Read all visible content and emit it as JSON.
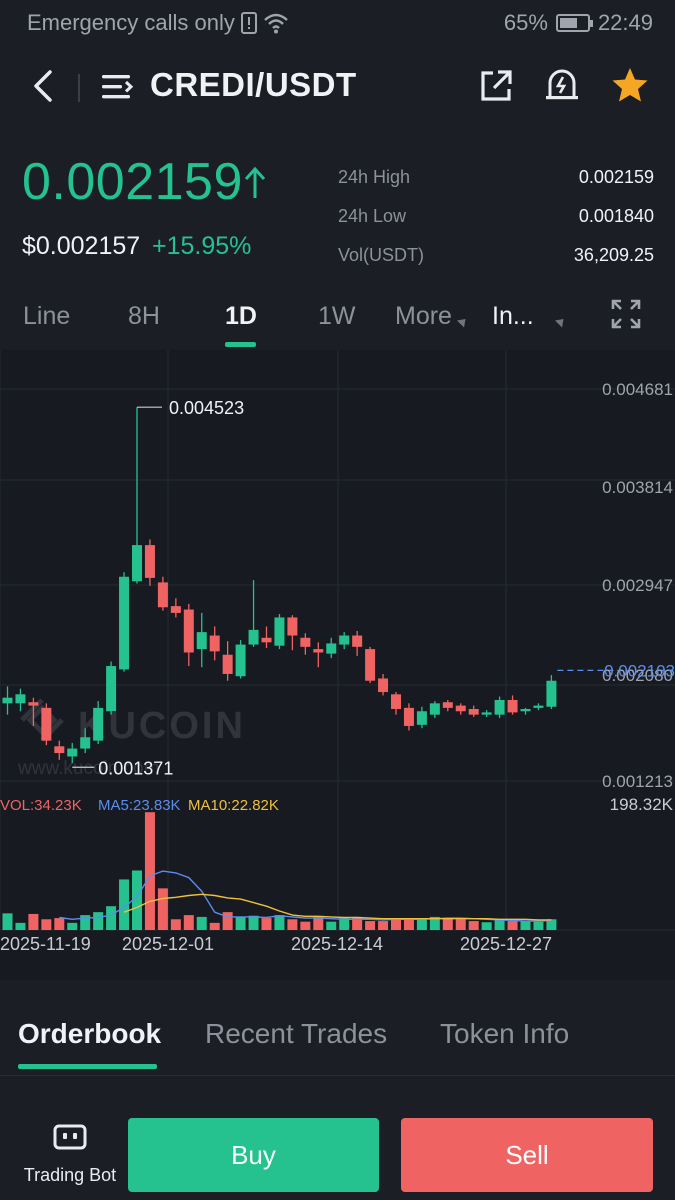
{
  "status_bar": {
    "carrier_text": "Emergency calls only",
    "battery_percent": "65%",
    "battery_level": 0.65,
    "time": "22:49"
  },
  "header": {
    "pair": "CREDI/USDT"
  },
  "price": {
    "last": "0.002159",
    "usd": "$0.002157",
    "change": "+15.95%"
  },
  "stats": [
    {
      "label": "24h High",
      "value": "0.002159"
    },
    {
      "label": "24h Low",
      "value": "0.001840"
    },
    {
      "label": "Vol(USDT)",
      "value": "36,209.25"
    }
  ],
  "timeframes": {
    "line": "Line",
    "h8": "8H",
    "d1": "1D",
    "w1": "1W",
    "more": "More",
    "indicators": "In..."
  },
  "colors": {
    "up": "#25c28f",
    "down": "#f06363",
    "ma5": "#5b8def",
    "ma10": "#f0c03a",
    "bg": "#1b1e25",
    "chart_bg": "#171a20"
  },
  "chart_data": {
    "type": "candlestick",
    "watermark": "KUCOIN",
    "watermark_url": "www.kucoin.com",
    "y_ticks": [
      "0.004681",
      "0.003814",
      "0.002947",
      "0.002080",
      "0.001213"
    ],
    "y_range": [
      0.001213,
      0.004681
    ],
    "current_price_label": "0.002103",
    "current_price": 0.002103,
    "max_label": "0.004523",
    "min_label": "0.001371",
    "x_labels": [
      "2025-11-19",
      "2025-12-01",
      "2025-12-14",
      "2025-12-27"
    ],
    "candles": [
      {
        "o": 0.0019,
        "c": 0.00195,
        "h": 0.00205,
        "l": 0.0018
      },
      {
        "o": 0.0019,
        "c": 0.00198,
        "h": 0.00203,
        "l": 0.00183
      },
      {
        "o": 0.00191,
        "c": 0.00188,
        "h": 0.00195,
        "l": 0.0017
      },
      {
        "o": 0.00186,
        "c": 0.00157,
        "h": 0.0019,
        "l": 0.00153
      },
      {
        "o": 0.00152,
        "c": 0.00146,
        "h": 0.00157,
        "l": 0.0014
      },
      {
        "o": 0.00143,
        "c": 0.0015,
        "h": 0.00155,
        "l": 0.00137
      },
      {
        "o": 0.0015,
        "c": 0.0016,
        "h": 0.00168,
        "l": 0.00146
      },
      {
        "o": 0.00157,
        "c": 0.00186,
        "h": 0.00192,
        "l": 0.00154
      },
      {
        "o": 0.00183,
        "c": 0.00223,
        "h": 0.00227,
        "l": 0.0018
      },
      {
        "o": 0.0022,
        "c": 0.00302,
        "h": 0.00306,
        "l": 0.00218
      },
      {
        "o": 0.00298,
        "c": 0.0033,
        "h": 0.00452,
        "l": 0.00296
      },
      {
        "o": 0.0033,
        "c": 0.00301,
        "h": 0.00335,
        "l": 0.00294
      },
      {
        "o": 0.00297,
        "c": 0.00275,
        "h": 0.00302,
        "l": 0.00272
      },
      {
        "o": 0.00276,
        "c": 0.0027,
        "h": 0.00283,
        "l": 0.00266
      },
      {
        "o": 0.00273,
        "c": 0.00235,
        "h": 0.00278,
        "l": 0.00223
      },
      {
        "o": 0.00238,
        "c": 0.00253,
        "h": 0.0027,
        "l": 0.00222
      },
      {
        "o": 0.0025,
        "c": 0.00236,
        "h": 0.00258,
        "l": 0.00228
      },
      {
        "o": 0.00233,
        "c": 0.00216,
        "h": 0.00245,
        "l": 0.0021
      },
      {
        "o": 0.00214,
        "c": 0.00242,
        "h": 0.00246,
        "l": 0.00212
      },
      {
        "o": 0.00242,
        "c": 0.00255,
        "h": 0.00299,
        "l": 0.0024
      },
      {
        "o": 0.00248,
        "c": 0.00244,
        "h": 0.00258,
        "l": 0.00239
      },
      {
        "o": 0.00241,
        "c": 0.00266,
        "h": 0.00269,
        "l": 0.00238
      },
      {
        "o": 0.00266,
        "c": 0.0025,
        "h": 0.00268,
        "l": 0.00237
      },
      {
        "o": 0.00248,
        "c": 0.0024,
        "h": 0.00252,
        "l": 0.00233
      },
      {
        "o": 0.00238,
        "c": 0.00235,
        "h": 0.00244,
        "l": 0.00222
      },
      {
        "o": 0.00234,
        "c": 0.00243,
        "h": 0.00248,
        "l": 0.0023
      },
      {
        "o": 0.00242,
        "c": 0.0025,
        "h": 0.00253,
        "l": 0.00238
      },
      {
        "o": 0.0025,
        "c": 0.0024,
        "h": 0.00254,
        "l": 0.00232
      },
      {
        "o": 0.00238,
        "c": 0.0021,
        "h": 0.0024,
        "l": 0.00208
      },
      {
        "o": 0.00212,
        "c": 0.002,
        "h": 0.00216,
        "l": 0.00197
      },
      {
        "o": 0.00198,
        "c": 0.00185,
        "h": 0.002,
        "l": 0.0018
      },
      {
        "o": 0.00186,
        "c": 0.0017,
        "h": 0.0019,
        "l": 0.00166
      },
      {
        "o": 0.00171,
        "c": 0.00183,
        "h": 0.00187,
        "l": 0.00168
      },
      {
        "o": 0.0018,
        "c": 0.0019,
        "h": 0.00192,
        "l": 0.00177
      },
      {
        "o": 0.00191,
        "c": 0.00186,
        "h": 0.00193,
        "l": 0.00183
      },
      {
        "o": 0.00188,
        "c": 0.00183,
        "h": 0.0019,
        "l": 0.0018
      },
      {
        "o": 0.00185,
        "c": 0.0018,
        "h": 0.00188,
        "l": 0.00178
      },
      {
        "o": 0.0018,
        "c": 0.00182,
        "h": 0.00184,
        "l": 0.00178
      },
      {
        "o": 0.0018,
        "c": 0.00193,
        "h": 0.00196,
        "l": 0.00177
      },
      {
        "o": 0.00193,
        "c": 0.00182,
        "h": 0.00197,
        "l": 0.0018
      },
      {
        "o": 0.00183,
        "c": 0.00185,
        "h": 0.00186,
        "l": 0.0018
      },
      {
        "o": 0.00186,
        "c": 0.00188,
        "h": 0.0019,
        "l": 0.00184
      },
      {
        "o": 0.00187,
        "c": 0.0021,
        "h": 0.00215,
        "l": 0.00185
      }
    ],
    "volume": {
      "vol_label": "VOL:34.23K",
      "ma5_label": "MA5:23.83K",
      "ma10_label": "MA10:22.82K",
      "max_label": "198.32K",
      "max": 198.32,
      "values": [
        28,
        12,
        27,
        18,
        20,
        12,
        25,
        30,
        40,
        85,
        100,
        198,
        70,
        18,
        25,
        22,
        12,
        30,
        22,
        24,
        20,
        25,
        18,
        14,
        22,
        14,
        20,
        22,
        15,
        15,
        18,
        18,
        20,
        22,
        20,
        18,
        15,
        13,
        17,
        15,
        16,
        14,
        18
      ],
      "ma5": [
        null,
        null,
        null,
        null,
        21,
        18,
        20,
        21,
        25,
        38,
        56,
        91,
        99,
        96,
        88,
        65,
        30,
        22,
        22,
        22,
        21,
        24,
        22,
        20,
        20,
        19,
        18,
        18,
        18,
        17,
        18,
        18,
        18,
        19,
        20,
        20,
        19,
        18,
        17,
        16,
        15,
        15,
        16
      ],
      "ma10": [
        null,
        null,
        null,
        null,
        null,
        null,
        null,
        null,
        null,
        30,
        38,
        48,
        53,
        55,
        58,
        60,
        58,
        54,
        52,
        46,
        40,
        32,
        25,
        23,
        23,
        22,
        21,
        21,
        20,
        19,
        19,
        19,
        19,
        19,
        19,
        19,
        19,
        19,
        18,
        18,
        18,
        17,
        17
      ]
    }
  },
  "orderbook_tabs": {
    "orderbook": "Orderbook",
    "recent_trades": "Recent Trades",
    "token_info": "Token Info"
  },
  "bottom": {
    "trading_bot": "Trading Bot",
    "buy": "Buy",
    "sell": "Sell"
  }
}
